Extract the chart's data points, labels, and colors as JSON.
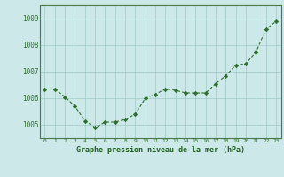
{
  "x": [
    0,
    1,
    2,
    3,
    4,
    5,
    6,
    7,
    8,
    9,
    10,
    11,
    12,
    13,
    14,
    15,
    16,
    17,
    18,
    19,
    20,
    21,
    22,
    23
  ],
  "y": [
    1006.35,
    1006.35,
    1006.05,
    1005.7,
    1005.15,
    1004.9,
    1005.1,
    1005.1,
    1005.2,
    1005.4,
    1006.0,
    1006.15,
    1006.35,
    1006.3,
    1006.2,
    1006.2,
    1006.2,
    1006.55,
    1006.85,
    1007.25,
    1007.3,
    1007.75,
    1008.6,
    1008.9
  ],
  "ylim": [
    1004.5,
    1009.5
  ],
  "yticks": [
    1005,
    1006,
    1007,
    1008,
    1009
  ],
  "xtick_labels": [
    "0",
    "1",
    "2",
    "3",
    "4",
    "5",
    "6",
    "7",
    "8",
    "9",
    "10",
    "11",
    "12",
    "13",
    "14",
    "15",
    "16",
    "17",
    "18",
    "19",
    "20",
    "21",
    "22",
    "23"
  ],
  "line_color": "#2d6e2d",
  "marker_color": "#2d6e2d",
  "bg_color": "#cde8e8",
  "grid_color": "#9ec8c8",
  "xlabel": "Graphe pression niveau de la mer (hPa)",
  "xlabel_color": "#1a5e1a",
  "axis_label_color": "#2d6e2d",
  "tick_label_color": "#2d6e2d",
  "spine_color": "#4a7a4a"
}
